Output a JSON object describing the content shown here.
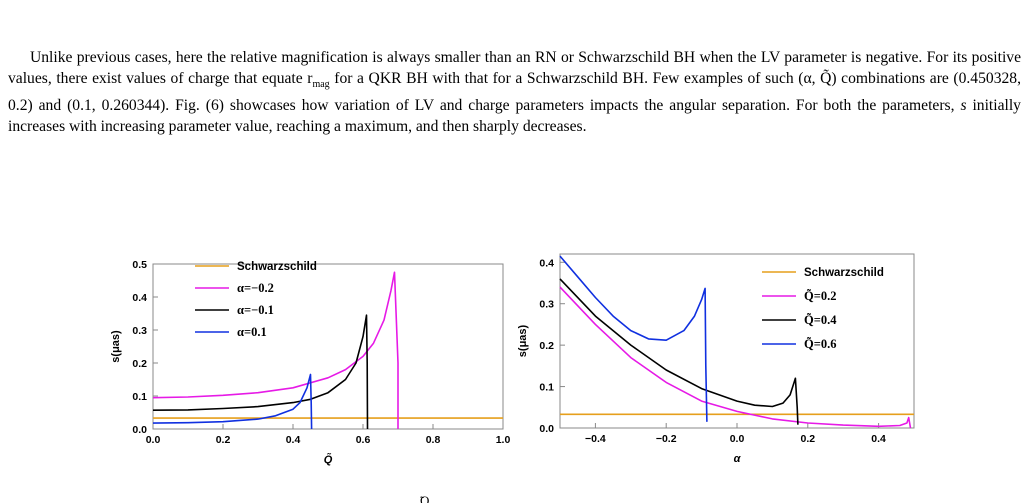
{
  "page": {
    "top_fragment": "",
    "bottom_fragment": "̃Q"
  },
  "paragraph": {
    "l1": "Unlike previous cases, here the relative magnification is always smaller than an RN or Schwarzschild BH when the",
    "l2a": "LV parameter is negative. For its positive values, there exist values of charge that equate r",
    "l2sub": "mag",
    "l2b": " for a QKR BH with",
    "l3a": "that for a Schwarzschild BH. Few examples of such (α, Q̃) combinations are (0.450328, 0.2) and (0.1, 0.260344). Fig.",
    "l4": "(6) showcases how variation of LV and charge parameters impacts the angular separation. For both the parameters,",
    "l5a": "s",
    "l5b": " initially increases with increasing parameter value, reaching a maximum, and then sharply decreases."
  },
  "chart_data": [
    {
      "type": "line",
      "xlabel": "Q̃",
      "ylabel": "s(μas)",
      "xlim": [
        0,
        1
      ],
      "ylim": [
        0,
        0.5
      ],
      "xticks": [
        "0.0",
        "0.2",
        "0.4",
        "0.6",
        "0.8",
        "1.0"
      ],
      "yticks": [
        "0.0",
        "0.1",
        "0.2",
        "0.3",
        "0.4",
        "0.5"
      ],
      "legend": [
        "Schwarzschild",
        "α=−0.2",
        "α=−0.1",
        "α=0.1"
      ],
      "legend_position": "left",
      "series": [
        {
          "name": "Schwarzschild",
          "color": "#e69f1c",
          "x": [
            0,
            1
          ],
          "y": [
            0.033,
            0.033
          ]
        },
        {
          "name": "α=−0.2",
          "color": "#e61ae6",
          "x": [
            0,
            0.1,
            0.2,
            0.3,
            0.4,
            0.5,
            0.55,
            0.6,
            0.63,
            0.66,
            0.68,
            0.69,
            0.7,
            0.7
          ],
          "y": [
            0.095,
            0.097,
            0.102,
            0.11,
            0.125,
            0.155,
            0.18,
            0.22,
            0.26,
            0.33,
            0.42,
            0.475,
            0.2,
            0.0
          ]
        },
        {
          "name": "α=−0.1",
          "color": "#000000",
          "x": [
            0,
            0.1,
            0.2,
            0.3,
            0.4,
            0.45,
            0.5,
            0.55,
            0.58,
            0.6,
            0.61,
            0.612,
            0.613
          ],
          "y": [
            0.057,
            0.058,
            0.062,
            0.068,
            0.08,
            0.09,
            0.11,
            0.15,
            0.2,
            0.28,
            0.345,
            0.2,
            0.0
          ]
        },
        {
          "name": "α=0.1",
          "color": "#1030e0",
          "x": [
            0,
            0.1,
            0.2,
            0.3,
            0.35,
            0.4,
            0.42,
            0.44,
            0.45,
            0.452,
            0.453
          ],
          "y": [
            0.018,
            0.019,
            0.022,
            0.03,
            0.04,
            0.06,
            0.08,
            0.125,
            0.165,
            0.08,
            0.0
          ]
        }
      ]
    },
    {
      "type": "line",
      "xlabel": "α",
      "ylabel": "s(μas)",
      "xlim": [
        -0.5,
        0.5
      ],
      "ylim": [
        0,
        0.42
      ],
      "xticks": [
        "−0.4",
        "−0.2",
        "0.0",
        "0.2",
        "0.4"
      ],
      "yticks": [
        "0.0",
        "0.1",
        "0.2",
        "0.3",
        "0.4"
      ],
      "legend": [
        "Schwarzschild",
        "Q̃=0.2",
        "Q̃=0.4",
        "Q̃=0.6"
      ],
      "legend_position": "top-right",
      "series": [
        {
          "name": "Schwarzschild",
          "color": "#e69f1c",
          "x": [
            -0.5,
            0.5
          ],
          "y": [
            0.033,
            0.033
          ]
        },
        {
          "name": "Q̃=0.2",
          "color": "#e61ae6",
          "x": [
            -0.5,
            -0.4,
            -0.3,
            -0.2,
            -0.1,
            0.0,
            0.1,
            0.2,
            0.3,
            0.4,
            0.46,
            0.48,
            0.485,
            0.49
          ],
          "y": [
            0.34,
            0.25,
            0.17,
            0.11,
            0.065,
            0.04,
            0.022,
            0.012,
            0.007,
            0.004,
            0.006,
            0.012,
            0.025,
            0.0
          ]
        },
        {
          "name": "Q̃=0.4",
          "color": "#000000",
          "x": [
            -0.5,
            -0.4,
            -0.3,
            -0.2,
            -0.1,
            0.0,
            0.05,
            0.1,
            0.13,
            0.15,
            0.165,
            0.17,
            0.172
          ],
          "y": [
            0.36,
            0.27,
            0.2,
            0.14,
            0.095,
            0.065,
            0.055,
            0.052,
            0.06,
            0.08,
            0.12,
            0.05,
            0.008
          ]
        },
        {
          "name": "Q̃=0.6",
          "color": "#1030e0",
          "x": [
            -0.5,
            -0.45,
            -0.4,
            -0.35,
            -0.3,
            -0.25,
            -0.2,
            -0.15,
            -0.12,
            -0.1,
            -0.09,
            -0.088,
            -0.085
          ],
          "y": [
            0.415,
            0.365,
            0.315,
            0.27,
            0.235,
            0.215,
            0.212,
            0.235,
            0.27,
            0.31,
            0.337,
            0.15,
            0.015
          ]
        }
      ]
    }
  ]
}
